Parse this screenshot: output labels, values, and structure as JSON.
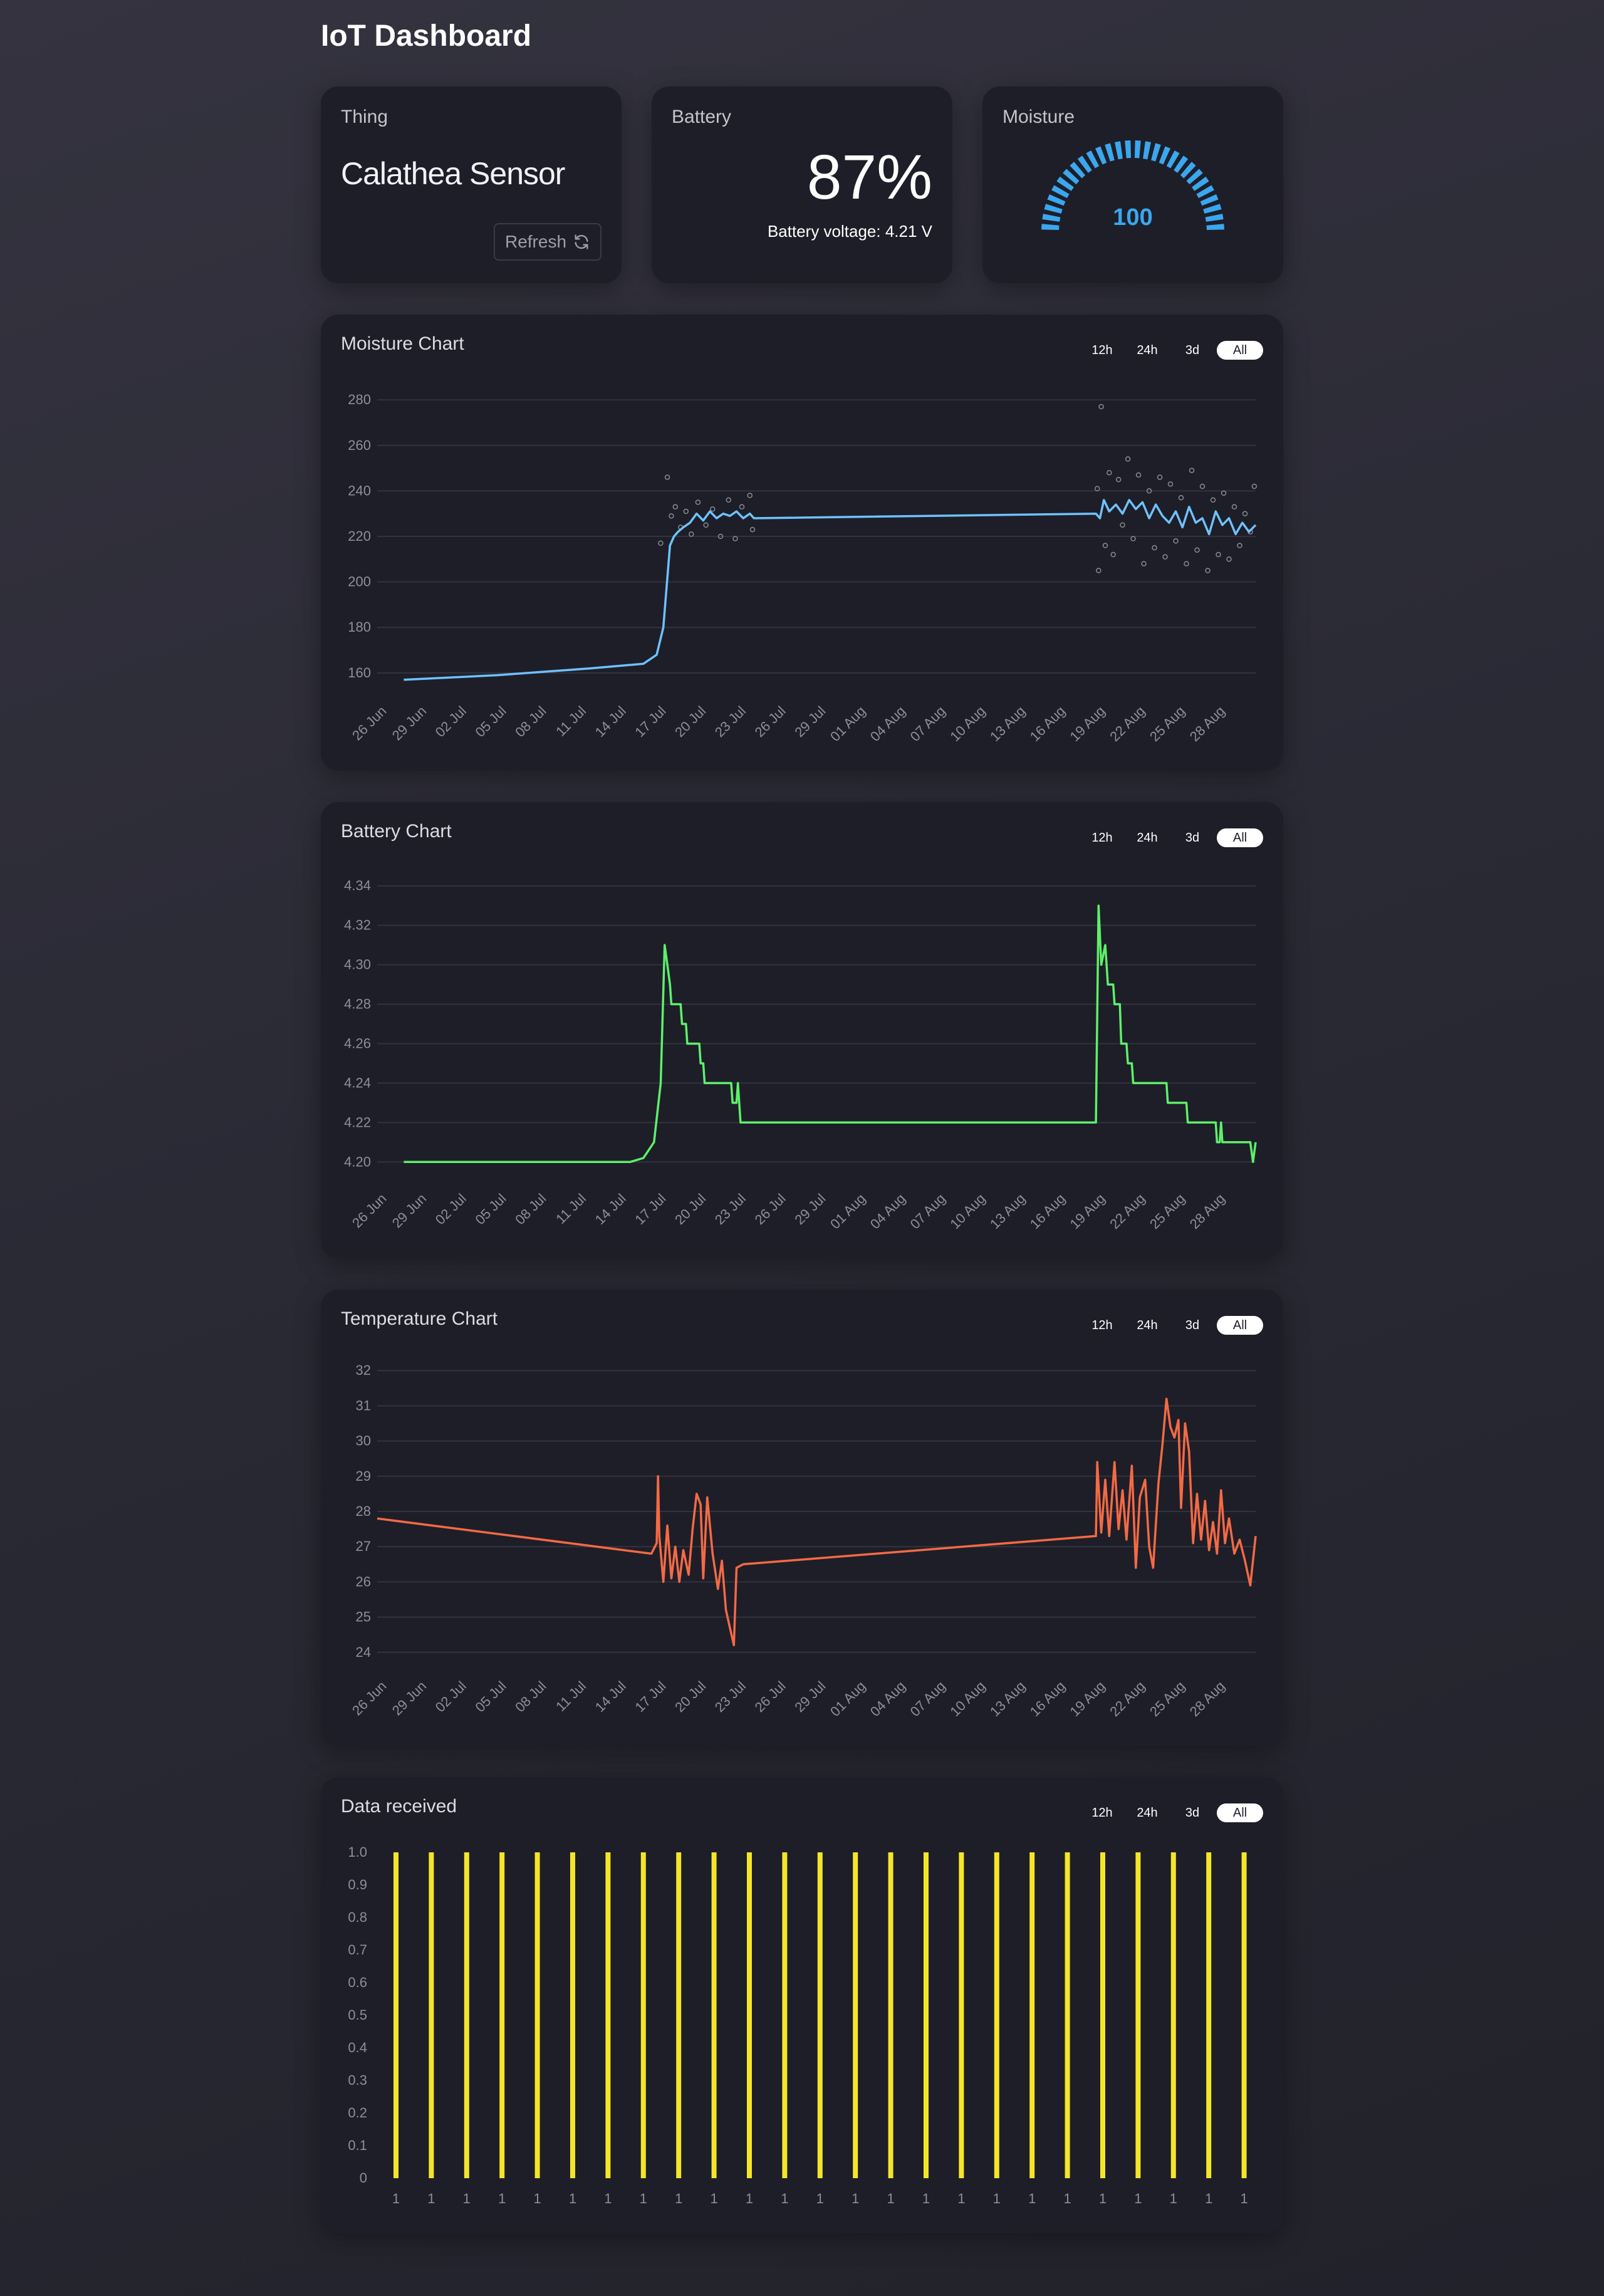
{
  "app": {
    "title": "IoT Dashboard"
  },
  "thing": {
    "label": "Thing",
    "name": "Calathea Sensor",
    "refresh_label": "Refresh"
  },
  "battery": {
    "label": "Battery",
    "percent": "87%",
    "voltage_text": "Battery voltage: 4.21 V"
  },
  "moisture": {
    "label": "Moisture",
    "value": "100",
    "gauge_fraction": 1.0,
    "color": "#3aa7ee"
  },
  "range_options": [
    "12h",
    "24h",
    "3d",
    "All"
  ],
  "range_selected": "All",
  "x_ticks": [
    "26 Jun",
    "29 Jun",
    "02 Jul",
    "05 Jul",
    "08 Jul",
    "11 Jul",
    "14 Jul",
    "17 Jul",
    "20 Jul",
    "23 Jul",
    "26 Jul",
    "29 Jul",
    "01 Aug",
    "04 Aug",
    "07 Aug",
    "10 Aug",
    "13 Aug",
    "16 Aug",
    "19 Aug",
    "22 Aug",
    "25 Aug",
    "28 Aug"
  ],
  "chart_data": [
    {
      "id": "moisture",
      "type": "line",
      "title": "Moisture Chart",
      "color": "#6ec2ff",
      "scatter_color": "#8a8a95",
      "x_start": "2023-06-26",
      "x_end": "2023-08-31",
      "ylim": [
        155,
        285
      ],
      "yticks": [
        160,
        180,
        200,
        220,
        240,
        260,
        280
      ],
      "series": [
        {
          "values": [
            [
              "2023-06-28",
              157
            ],
            [
              "2023-07-05",
              159
            ],
            [
              "2023-07-12",
              162
            ],
            [
              "2023-07-16",
              164
            ],
            [
              "2023-07-17",
              168
            ],
            [
              "2023-07-17.5",
              180
            ],
            [
              "2023-07-18",
              216
            ],
            [
              "2023-07-18.3",
              220
            ],
            [
              "2023-07-18.6",
              222
            ],
            [
              "2023-07-19",
              224
            ],
            [
              "2023-07-19.5",
              226
            ],
            [
              "2023-07-20",
              230
            ],
            [
              "2023-07-20.5",
              227
            ],
            [
              "2023-07-21",
              231
            ],
            [
              "2023-07-21.5",
              228
            ],
            [
              "2023-07-22",
              230
            ],
            [
              "2023-07-22.5",
              229
            ],
            [
              "2023-07-23",
              231
            ],
            [
              "2023-07-23.5",
              228
            ],
            [
              "2023-07-24",
              230
            ],
            [
              "2023-07-24.3",
              228
            ],
            [
              "2023-08-19",
              230
            ],
            [
              "2023-08-19.3",
              228
            ],
            [
              "2023-08-19.6",
              236
            ],
            [
              "2023-08-20",
              231
            ],
            [
              "2023-08-20.5",
              234
            ],
            [
              "2023-08-21",
              230
            ],
            [
              "2023-08-21.5",
              236
            ],
            [
              "2023-08-22",
              232
            ],
            [
              "2023-08-22.5",
              235
            ],
            [
              "2023-08-23",
              228
            ],
            [
              "2023-08-23.5",
              234
            ],
            [
              "2023-08-24",
              229
            ],
            [
              "2023-08-24.5",
              226
            ],
            [
              "2023-08-25",
              231
            ],
            [
              "2023-08-25.5",
              224
            ],
            [
              "2023-08-26",
              233
            ],
            [
              "2023-08-26.5",
              226
            ],
            [
              "2023-08-27",
              228
            ],
            [
              "2023-08-27.5",
              221
            ],
            [
              "2023-08-28",
              231
            ],
            [
              "2023-08-28.5",
              225
            ],
            [
              "2023-08-29",
              228
            ],
            [
              "2023-08-29.5",
              221
            ],
            [
              "2023-08-30",
              226
            ],
            [
              "2023-08-30.5",
              222
            ],
            [
              "2023-08-31",
              225
            ]
          ]
        }
      ],
      "scatter": [
        [
          "2023-07-17.3",
          217
        ],
        [
          "2023-07-17.8",
          246
        ],
        [
          "2023-07-18.1",
          229
        ],
        [
          "2023-07-18.4",
          233
        ],
        [
          "2023-07-18.8",
          224
        ],
        [
          "2023-07-19.2",
          231
        ],
        [
          "2023-07-19.6",
          221
        ],
        [
          "2023-07-20.1",
          235
        ],
        [
          "2023-07-20.7",
          225
        ],
        [
          "2023-07-21.2",
          232
        ],
        [
          "2023-07-21.8",
          220
        ],
        [
          "2023-07-22.4",
          236
        ],
        [
          "2023-07-22.9",
          219
        ],
        [
          "2023-07-23.4",
          233
        ],
        [
          "2023-07-24",
          238
        ],
        [
          "2023-07-24.2",
          223
        ],
        [
          "2023-08-19.1",
          241
        ],
        [
          "2023-08-19.2",
          205
        ],
        [
          "2023-08-19.4",
          277
        ],
        [
          "2023-08-19.7",
          216
        ],
        [
          "2023-08-20",
          248
        ],
        [
          "2023-08-20.3",
          212
        ],
        [
          "2023-08-20.7",
          245
        ],
        [
          "2023-08-21",
          225
        ],
        [
          "2023-08-21.4",
          254
        ],
        [
          "2023-08-21.8",
          219
        ],
        [
          "2023-08-22.2",
          247
        ],
        [
          "2023-08-22.6",
          208
        ],
        [
          "2023-08-23",
          240
        ],
        [
          "2023-08-23.4",
          215
        ],
        [
          "2023-08-23.8",
          246
        ],
        [
          "2023-08-24.2",
          211
        ],
        [
          "2023-08-24.6",
          243
        ],
        [
          "2023-08-25",
          218
        ],
        [
          "2023-08-25.4",
          237
        ],
        [
          "2023-08-25.8",
          208
        ],
        [
          "2023-08-26.2",
          249
        ],
        [
          "2023-08-26.6",
          214
        ],
        [
          "2023-08-27",
          242
        ],
        [
          "2023-08-27.4",
          205
        ],
        [
          "2023-08-27.8",
          236
        ],
        [
          "2023-08-28.2",
          212
        ],
        [
          "2023-08-28.6",
          239
        ],
        [
          "2023-08-29",
          210
        ],
        [
          "2023-08-29.4",
          233
        ],
        [
          "2023-08-29.8",
          216
        ],
        [
          "2023-08-30.2",
          230
        ],
        [
          "2023-08-30.6",
          222
        ],
        [
          "2023-08-30.9",
          242
        ]
      ]
    },
    {
      "id": "battery",
      "type": "line",
      "title": "Battery Chart",
      "color": "#5df06a",
      "x_start": "2023-06-26",
      "x_end": "2023-08-31",
      "ylim": [
        4.195,
        4.345
      ],
      "yticks": [
        4.2,
        4.22,
        4.24,
        4.26,
        4.28,
        4.3,
        4.32,
        4.34
      ],
      "series": [
        {
          "values": [
            [
              "2023-06-28",
              4.2
            ],
            [
              "2023-07-15",
              4.2
            ],
            [
              "2023-07-16",
              4.202
            ],
            [
              "2023-07-16.8",
              4.21
            ],
            [
              "2023-07-17.3",
              4.24
            ],
            [
              "2023-07-17.6",
              4.31
            ],
            [
              "2023-07-17.8",
              4.3
            ],
            [
              "2023-07-18",
              4.29
            ],
            [
              "2023-07-18.1",
              4.28
            ],
            [
              "2023-07-18.8",
              4.28
            ],
            [
              "2023-07-18.9",
              4.27
            ],
            [
              "2023-07-19.2",
              4.27
            ],
            [
              "2023-07-19.3",
              4.26
            ],
            [
              "2023-07-20.2",
              4.26
            ],
            [
              "2023-07-20.3",
              4.25
            ],
            [
              "2023-07-20.5",
              4.25
            ],
            [
              "2023-07-20.6",
              4.24
            ],
            [
              "2023-07-22.6",
              4.24
            ],
            [
              "2023-07-22.7",
              4.23
            ],
            [
              "2023-07-23",
              4.23
            ],
            [
              "2023-07-23.1",
              4.24
            ],
            [
              "2023-07-23.3",
              4.22
            ],
            [
              "2023-08-19",
              4.22
            ],
            [
              "2023-08-19.2",
              4.33
            ],
            [
              "2023-08-19.4",
              4.3
            ],
            [
              "2023-08-19.7",
              4.31
            ],
            [
              "2023-08-19.9",
              4.29
            ],
            [
              "2023-08-20.3",
              4.29
            ],
            [
              "2023-08-20.4",
              4.28
            ],
            [
              "2023-08-20.8",
              4.28
            ],
            [
              "2023-08-20.9",
              4.26
            ],
            [
              "2023-08-21.3",
              4.26
            ],
            [
              "2023-08-21.4",
              4.25
            ],
            [
              "2023-08-21.7",
              4.25
            ],
            [
              "2023-08-21.8",
              4.24
            ],
            [
              "2023-08-24.3",
              4.24
            ],
            [
              "2023-08-24.4",
              4.23
            ],
            [
              "2023-08-25.8",
              4.23
            ],
            [
              "2023-08-25.9",
              4.22
            ],
            [
              "2023-08-28",
              4.22
            ],
            [
              "2023-08-28.1",
              4.21
            ],
            [
              "2023-08-28.3",
              4.21
            ],
            [
              "2023-08-28.4",
              4.22
            ],
            [
              "2023-08-28.5",
              4.21
            ],
            [
              "2023-08-30.6",
              4.21
            ],
            [
              "2023-08-30.8",
              4.2
            ],
            [
              "2023-08-31",
              4.21
            ]
          ]
        }
      ]
    },
    {
      "id": "temperature",
      "type": "line",
      "title": "Temperature Chart",
      "color": "#f46a45",
      "x_start": "2023-06-26",
      "x_end": "2023-08-31",
      "ylim": [
        23.8,
        32.2
      ],
      "yticks": [
        24,
        25,
        26,
        27,
        28,
        29,
        30,
        31,
        32
      ],
      "series": [
        {
          "values": [
            [
              "2023-06-26",
              27.8
            ],
            [
              "2023-07-16.6",
              26.8
            ],
            [
              "2023-07-17",
              27.1
            ],
            [
              "2023-07-17.1",
              29.0
            ],
            [
              "2023-07-17.2",
              27.3
            ],
            [
              "2023-07-17.5",
              26.0
            ],
            [
              "2023-07-17.8",
              27.6
            ],
            [
              "2023-07-18.1",
              26.1
            ],
            [
              "2023-07-18.4",
              27.0
            ],
            [
              "2023-07-18.7",
              26.0
            ],
            [
              "2023-07-19",
              26.9
            ],
            [
              "2023-07-19.4",
              26.2
            ],
            [
              "2023-07-19.7",
              27.5
            ],
            [
              "2023-07-20",
              28.5
            ],
            [
              "2023-07-20.3",
              28.2
            ],
            [
              "2023-07-20.5",
              26.1
            ],
            [
              "2023-07-20.8",
              28.4
            ],
            [
              "2023-07-21.2",
              26.8
            ],
            [
              "2023-07-21.6",
              25.8
            ],
            [
              "2023-07-21.9",
              26.6
            ],
            [
              "2023-07-22.2",
              25.2
            ],
            [
              "2023-07-22.5",
              24.7
            ],
            [
              "2023-07-22.8",
              24.2
            ],
            [
              "2023-07-23",
              26.4
            ],
            [
              "2023-07-23.5",
              26.5
            ],
            [
              "2023-08-19",
              27.3
            ],
            [
              "2023-08-19.1",
              29.4
            ],
            [
              "2023-08-19.4",
              27.4
            ],
            [
              "2023-08-19.7",
              28.9
            ],
            [
              "2023-08-20",
              27.3
            ],
            [
              "2023-08-20.4",
              29.4
            ],
            [
              "2023-08-20.7",
              27.5
            ],
            [
              "2023-08-21",
              28.6
            ],
            [
              "2023-08-21.3",
              27.2
            ],
            [
              "2023-08-21.7",
              29.3
            ],
            [
              "2023-08-22",
              26.4
            ],
            [
              "2023-08-22.3",
              28.4
            ],
            [
              "2023-08-22.7",
              28.9
            ],
            [
              "2023-08-23",
              27.0
            ],
            [
              "2023-08-23.3",
              26.4
            ],
            [
              "2023-08-23.7",
              28.8
            ],
            [
              "2023-08-24",
              29.9
            ],
            [
              "2023-08-24.3",
              31.2
            ],
            [
              "2023-08-24.6",
              30.4
            ],
            [
              "2023-08-24.9",
              30.1
            ],
            [
              "2023-08-25.2",
              30.6
            ],
            [
              "2023-08-25.4",
              28.1
            ],
            [
              "2023-08-25.7",
              30.5
            ],
            [
              "2023-08-26",
              29.7
            ],
            [
              "2023-08-26.3",
              27.1
            ],
            [
              "2023-08-26.6",
              28.5
            ],
            [
              "2023-08-26.9",
              27.2
            ],
            [
              "2023-08-27.2",
              28.3
            ],
            [
              "2023-08-27.5",
              26.9
            ],
            [
              "2023-08-27.8",
              27.7
            ],
            [
              "2023-08-28.1",
              26.8
            ],
            [
              "2023-08-28.4",
              28.6
            ],
            [
              "2023-08-28.7",
              27.1
            ],
            [
              "2023-08-29",
              27.8
            ],
            [
              "2023-08-29.4",
              26.8
            ],
            [
              "2023-08-29.8",
              27.2
            ],
            [
              "2023-08-30.2",
              26.6
            ],
            [
              "2023-08-30.6",
              25.9
            ],
            [
              "2023-08-31",
              27.3
            ]
          ]
        }
      ]
    },
    {
      "id": "data_received",
      "type": "bar",
      "title": "Data received",
      "color": "#f5e52a",
      "categories": [
        "1",
        "1",
        "1",
        "1",
        "1",
        "1",
        "1",
        "1",
        "1",
        "1",
        "1",
        "1",
        "1",
        "1",
        "1",
        "1",
        "1",
        "1",
        "1",
        "1",
        "1",
        "1",
        "1",
        "1",
        "1"
      ],
      "values": [
        1,
        1,
        1,
        1,
        1,
        1,
        1,
        1,
        1,
        1,
        1,
        1,
        1,
        1,
        1,
        1,
        1,
        1,
        1,
        1,
        1,
        1,
        1,
        1,
        1
      ],
      "ylim": [
        0,
        1.0
      ],
      "yticks": [
        "0",
        "0.1",
        "0.2",
        "0.3",
        "0.4",
        "0.5",
        "0.6",
        "0.7",
        "0.8",
        "0.9",
        "1.0"
      ]
    }
  ]
}
